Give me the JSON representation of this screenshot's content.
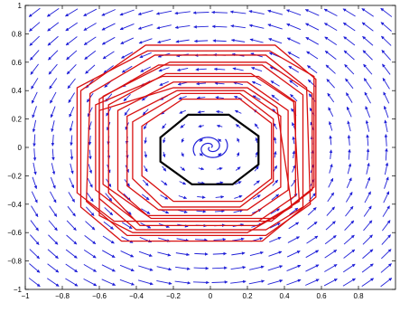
{
  "chart_data": {
    "type": "vector-field",
    "title": "",
    "xlabel": "",
    "ylabel": "",
    "xlim": [
      -1,
      1
    ],
    "ylim": [
      -1,
      1
    ],
    "grid": false,
    "xticks": [
      -1,
      -0.8,
      -0.6,
      -0.4,
      -0.2,
      0,
      0.2,
      0.4,
      0.6,
      0.8
    ],
    "xtick_labels": [
      "−1",
      "−0.8",
      "−0.6",
      "−0.4",
      "−0.2",
      "0",
      "0.2",
      "0.4",
      "0.6",
      "0.8"
    ],
    "yticks": [
      -1,
      -0.8,
      -0.6,
      -0.4,
      -0.2,
      0,
      0.2,
      0.4,
      0.6,
      0.8,
      1
    ],
    "ytick_labels": [
      "−1",
      "−0.8",
      "−0.6",
      "−0.4",
      "−0.2",
      "0",
      "0.2",
      "0.4",
      "0.6",
      "0.8",
      "1"
    ],
    "colors": {
      "arrows": "#2020d8",
      "trajectories": "#d81010",
      "invariant_set": "#000000",
      "spiral": "#2020d8"
    },
    "field": {
      "description_of_flow": "counter-clockwise rotation",
      "grid_x": [
        -0.95,
        -0.85,
        -0.75,
        -0.65,
        -0.55,
        -0.45,
        -0.35,
        -0.25,
        -0.15,
        -0.05,
        0.05,
        0.15,
        0.25,
        0.35,
        0.45,
        0.55,
        0.65,
        0.75,
        0.85,
        0.95
      ],
      "grid_y": [
        -0.95,
        -0.85,
        -0.75,
        -0.65,
        -0.55,
        -0.45,
        -0.35,
        -0.25,
        -0.15,
        -0.05,
        0.05,
        0.15,
        0.25,
        0.35,
        0.45,
        0.55,
        0.65,
        0.75,
        0.85,
        0.95
      ]
    },
    "invariant_set": {
      "name": "",
      "vertices": [
        [
          -0.12,
          0.23
        ],
        [
          0.1,
          0.23
        ],
        [
          0.26,
          0.08
        ],
        [
          0.26,
          -0.12
        ],
        [
          0.12,
          -0.26
        ],
        [
          -0.1,
          -0.26
        ],
        [
          -0.27,
          -0.1
        ],
        [
          -0.27,
          0.07
        ]
      ]
    },
    "trajectory_polygons": [
      [
        [
          -0.35,
          0.72
        ],
        [
          0.35,
          0.72
        ],
        [
          0.57,
          0.48
        ],
        [
          0.57,
          -0.35
        ],
        [
          0.28,
          -0.66
        ],
        [
          -0.48,
          -0.66
        ],
        [
          -0.7,
          -0.42
        ],
        [
          -0.7,
          0.4
        ]
      ],
      [
        [
          -0.3,
          0.65
        ],
        [
          0.3,
          0.65
        ],
        [
          0.52,
          0.42
        ],
        [
          0.54,
          -0.4
        ],
        [
          0.3,
          -0.62
        ],
        [
          -0.45,
          -0.62
        ],
        [
          -0.67,
          -0.38
        ],
        [
          -0.65,
          0.38
        ]
      ],
      [
        [
          -0.28,
          0.58
        ],
        [
          0.28,
          0.58
        ],
        [
          0.5,
          0.37
        ],
        [
          0.5,
          -0.42
        ],
        [
          0.3,
          -0.58
        ],
        [
          -0.4,
          -0.58
        ],
        [
          -0.6,
          -0.36
        ],
        [
          -0.6,
          0.34
        ]
      ],
      [
        [
          -0.24,
          0.52
        ],
        [
          0.22,
          0.52
        ],
        [
          0.45,
          0.32
        ],
        [
          0.48,
          -0.38
        ],
        [
          0.26,
          -0.55
        ],
        [
          -0.38,
          -0.55
        ],
        [
          -0.55,
          -0.32
        ],
        [
          -0.55,
          0.3
        ]
      ],
      [
        [
          -0.2,
          0.46
        ],
        [
          0.2,
          0.46
        ],
        [
          0.42,
          0.26
        ],
        [
          0.42,
          -0.3
        ],
        [
          0.22,
          -0.48
        ],
        [
          -0.34,
          -0.48
        ],
        [
          -0.5,
          -0.3
        ],
        [
          -0.5,
          0.26
        ]
      ],
      [
        [
          -0.18,
          0.4
        ],
        [
          0.18,
          0.4
        ],
        [
          0.38,
          0.22
        ],
        [
          0.38,
          -0.28
        ],
        [
          0.2,
          -0.44
        ],
        [
          -0.28,
          -0.44
        ],
        [
          -0.45,
          -0.27
        ],
        [
          -0.45,
          0.22
        ]
      ],
      [
        [
          -0.15,
          0.34
        ],
        [
          0.16,
          0.34
        ],
        [
          0.33,
          0.17
        ],
        [
          0.33,
          -0.22
        ],
        [
          0.17,
          -0.38
        ],
        [
          -0.2,
          -0.38
        ],
        [
          -0.37,
          -0.2
        ],
        [
          -0.37,
          0.15
        ]
      ],
      [
        [
          -0.22,
          0.6
        ],
        [
          0.3,
          0.6
        ],
        [
          0.55,
          0.38
        ],
        [
          0.55,
          -0.3
        ],
        [
          0.35,
          -0.5
        ],
        [
          -0.32,
          -0.5
        ],
        [
          -0.58,
          -0.26
        ],
        [
          -0.58,
          0.36
        ]
      ],
      [
        [
          -0.34,
          0.68
        ],
        [
          0.32,
          0.68
        ],
        [
          0.56,
          0.5
        ],
        [
          0.56,
          -0.28
        ],
        [
          0.33,
          -0.52
        ],
        [
          -0.52,
          -0.52
        ],
        [
          -0.72,
          -0.32
        ],
        [
          -0.72,
          0.42
        ]
      ],
      [
        [
          -0.2,
          0.42
        ],
        [
          0.2,
          0.42
        ],
        [
          0.36,
          0.28
        ],
        [
          0.44,
          -0.42
        ],
        [
          0.2,
          -0.6
        ],
        [
          -0.42,
          -0.6
        ],
        [
          -0.6,
          -0.48
        ],
        [
          -0.6,
          0.26
        ]
      ],
      [
        [
          -0.26,
          0.5
        ],
        [
          0.26,
          0.5
        ],
        [
          0.46,
          0.32
        ],
        [
          0.46,
          -0.34
        ],
        [
          0.26,
          -0.52
        ],
        [
          -0.4,
          -0.52
        ],
        [
          -0.62,
          -0.3
        ],
        [
          -0.62,
          0.3
        ]
      ],
      [
        [
          -0.16,
          0.38
        ],
        [
          0.16,
          0.38
        ],
        [
          0.34,
          0.2
        ],
        [
          0.34,
          -0.24
        ],
        [
          0.16,
          -0.42
        ],
        [
          -0.26,
          -0.42
        ],
        [
          -0.42,
          -0.22
        ],
        [
          -0.42,
          0.18
        ]
      ]
    ],
    "spiral": {
      "turns": 2.2,
      "max_radius": 0.12
    }
  }
}
